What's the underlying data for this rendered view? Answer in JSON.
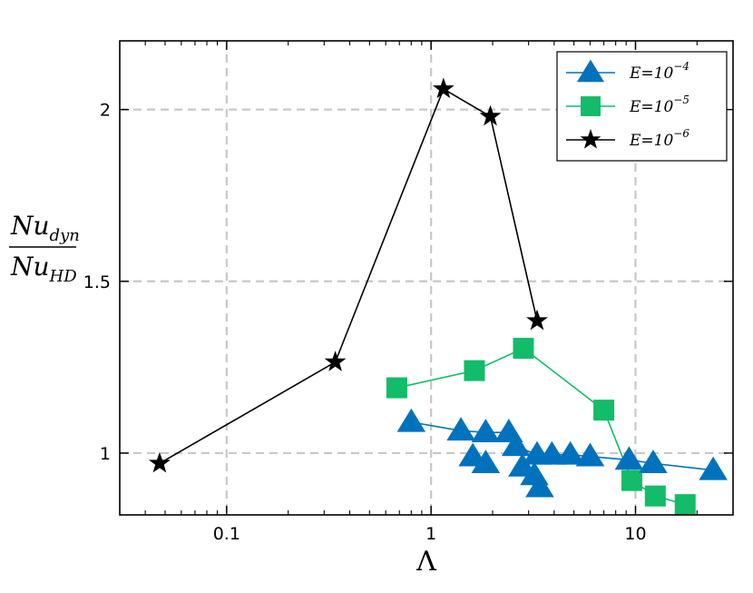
{
  "chart_data": {
    "type": "scatter",
    "xscale": "log",
    "xlim": [
      0.03,
      30
    ],
    "ylim": [
      0.82,
      2.2
    ],
    "grid": true,
    "legend_position": "top-right",
    "xlabel": "Λ",
    "ylabel": {
      "num_base": "Nu",
      "num_sub": "dyn",
      "den_base": "Nu",
      "den_sub": "HD"
    },
    "x_ticks": [
      {
        "value": 0.1,
        "label": "0.1"
      },
      {
        "value": 1,
        "label": "1"
      },
      {
        "value": 10,
        "label": "10"
      }
    ],
    "y_ticks": [
      {
        "value": 1,
        "label": "1"
      },
      {
        "value": 1.5,
        "label": "1.5"
      },
      {
        "value": 2,
        "label": "2"
      }
    ],
    "series": [
      {
        "name": "E=10^-4",
        "label_base": "E=10",
        "label_exp": "−4",
        "color": "#0072bd",
        "marker": "triangle",
        "segments": [
          [
            [
              0.8,
              1.09
            ],
            [
              1.4,
              1.065
            ],
            [
              1.85,
              1.06
            ],
            [
              2.4,
              1.06
            ]
          ],
          [
            [
              2.6,
              1.02
            ],
            [
              3.3,
              0.995
            ],
            [
              3.9,
              0.995
            ],
            [
              4.8,
              0.995
            ],
            [
              6.0,
              0.99
            ],
            [
              9.3,
              0.98
            ],
            [
              12.2,
              0.97
            ],
            [
              24.0,
              0.95
            ]
          ],
          [
            [
              1.6,
              0.99
            ],
            [
              1.85,
              0.97
            ]
          ],
          [
            [
              2.8,
              0.96
            ],
            [
              3.2,
              0.935
            ],
            [
              3.4,
              0.9
            ]
          ]
        ]
      },
      {
        "name": "E=10^-5",
        "label_base": "E=10",
        "label_exp": "−5",
        "color": "#12bc68",
        "marker": "square",
        "points": [
          [
            0.68,
            1.19
          ],
          [
            1.63,
            1.24
          ],
          [
            2.83,
            1.305
          ],
          [
            7.0,
            1.125
          ],
          [
            9.6,
            0.92
          ],
          [
            12.5,
            0.875
          ],
          [
            17.5,
            0.85
          ]
        ]
      },
      {
        "name": "E=10^-6",
        "label_base": "E=10",
        "label_exp": "−6",
        "color": "#000000",
        "marker": "star",
        "points": [
          [
            0.047,
            0.97
          ],
          [
            0.34,
            1.265
          ],
          [
            1.15,
            2.06
          ],
          [
            1.95,
            1.98
          ],
          [
            3.3,
            1.385
          ]
        ]
      }
    ]
  }
}
